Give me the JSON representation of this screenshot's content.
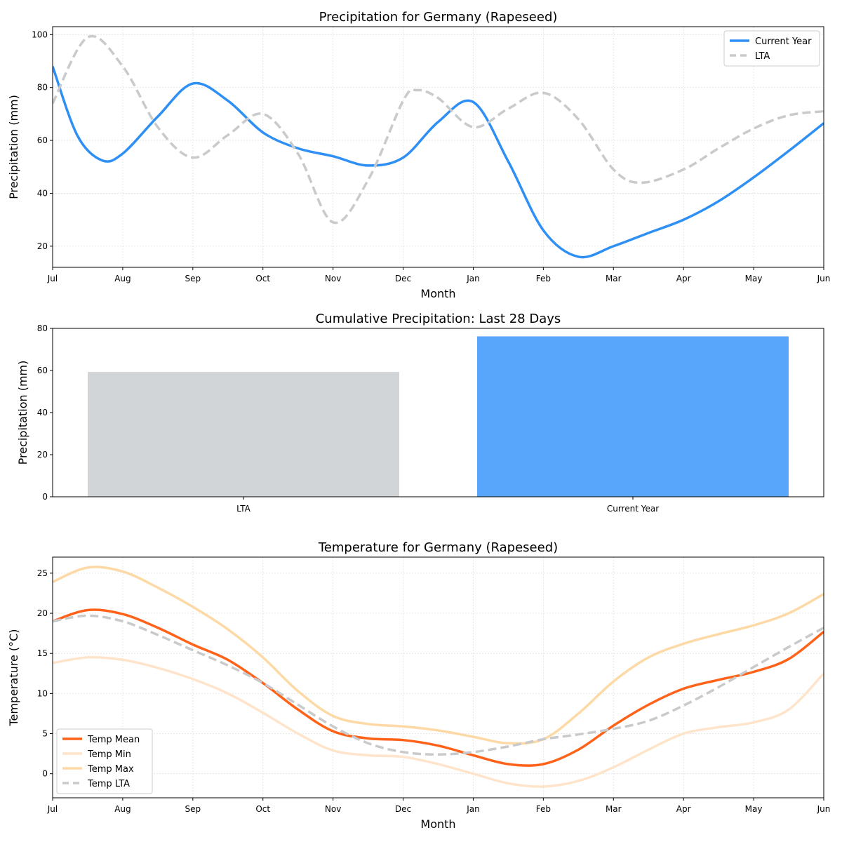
{
  "chart_data": [
    {
      "type": "line",
      "title": "Precipitation for Germany (Rapeseed)",
      "xlabel": "Month",
      "ylabel": "Precipitation (mm)",
      "x_tick_labels": [
        "Jul",
        "Aug",
        "Sep",
        "Oct",
        "Nov",
        "Dec",
        "Jan",
        "Feb",
        "Mar",
        "Apr",
        "May",
        "Jun"
      ],
      "xlim": [
        0,
        11
      ],
      "ylim": [
        12,
        103
      ],
      "y_ticks": [
        20,
        40,
        60,
        80,
        100
      ],
      "grid": true,
      "legend_position": "top-right",
      "series": [
        {
          "name": "Current Year",
          "color": "#2e8ff5",
          "style": "solid",
          "x": [
            0,
            0.35,
            0.7,
            1,
            1.5,
            2,
            2.5,
            3,
            3.5,
            4,
            4.5,
            5,
            5.5,
            6,
            6.5,
            7,
            7.5,
            8,
            8.5,
            9,
            9.5,
            10,
            10.5,
            11
          ],
          "values": [
            88,
            62,
            52.5,
            55,
            69,
            81.5,
            75,
            63,
            57,
            54,
            50.5,
            53.5,
            67,
            74.5,
            52,
            26,
            16,
            20,
            25,
            30,
            37,
            46,
            56,
            66.5
          ]
        },
        {
          "name": "LTA",
          "color": "#c8cacc",
          "style": "dashed",
          "x": [
            0,
            0.5,
            1,
            1.5,
            2,
            2.5,
            3,
            3.5,
            4,
            4.5,
            5,
            5.2,
            5.5,
            6,
            6.5,
            7,
            7.5,
            8,
            8.4,
            9,
            9.5,
            10,
            10.5,
            11
          ],
          "values": [
            74,
            99,
            88,
            65,
            53.5,
            62,
            70,
            55,
            29,
            45,
            75,
            79,
            76,
            65,
            72,
            78,
            68,
            49,
            44,
            49,
            57,
            64.5,
            69.5,
            71
          ]
        }
      ]
    },
    {
      "type": "bar",
      "title": "Cumulative Precipitation: Last 28 Days",
      "xlabel": "",
      "ylabel": "Precipitation (mm)",
      "categories": [
        "LTA",
        "Current Year"
      ],
      "values": [
        59.3,
        76.2
      ],
      "colors": [
        "#d1d5d8",
        "#58a6fb"
      ],
      "ylim": [
        0,
        80
      ],
      "y_ticks": [
        0,
        20,
        40,
        60,
        80
      ]
    },
    {
      "type": "line",
      "title": "Temperature for Germany (Rapeseed)",
      "xlabel": "Month",
      "ylabel": "Temperature (°C)",
      "x_tick_labels": [
        "Jul",
        "Aug",
        "Sep",
        "Oct",
        "Nov",
        "Dec",
        "Jan",
        "Feb",
        "Mar",
        "Apr",
        "May",
        "Jun"
      ],
      "xlim": [
        0,
        11
      ],
      "ylim": [
        -3,
        27
      ],
      "y_ticks": [
        0,
        5,
        10,
        15,
        20,
        25
      ],
      "grid": true,
      "legend_position": "bottom-left",
      "series": [
        {
          "name": "Temp Mean",
          "color": "#ff6218",
          "style": "solid",
          "x": [
            0,
            0.5,
            1,
            1.5,
            2,
            2.5,
            3,
            3.5,
            4,
            4.5,
            5,
            5.5,
            6,
            6.5,
            7,
            7.5,
            8,
            8.5,
            9,
            9.5,
            10,
            10.5,
            11
          ],
          "values": [
            19,
            20.4,
            19.9,
            18.2,
            16.1,
            14.2,
            11.3,
            8,
            5.3,
            4.4,
            4.2,
            3.5,
            2.3,
            1.2,
            1.2,
            3,
            6,
            8.6,
            10.6,
            11.7,
            12.7,
            14.3,
            17.7
          ]
        },
        {
          "name": "Temp Min",
          "color": "#ffe4cc",
          "style": "solid",
          "x": [
            0,
            0.5,
            1,
            1.5,
            2,
            2.5,
            3,
            3.5,
            4,
            4.5,
            5,
            5.5,
            6,
            6.5,
            7,
            7.5,
            8,
            8.5,
            9,
            9.5,
            10,
            10.5,
            11
          ],
          "values": [
            13.8,
            14.5,
            14.2,
            13.2,
            11.8,
            10,
            7.6,
            5,
            2.9,
            2.3,
            2.1,
            1.2,
            0,
            -1.2,
            -1.6,
            -0.9,
            0.8,
            3,
            5,
            5.8,
            6.4,
            8,
            12.5
          ]
        },
        {
          "name": "Temp Max",
          "color": "#fdd9a6",
          "style": "solid",
          "x": [
            0,
            0.5,
            1,
            1.5,
            2,
            2.5,
            3,
            3.5,
            4,
            4.5,
            5,
            5.5,
            6,
            6.5,
            7,
            7.5,
            8,
            8.5,
            9,
            9.5,
            10,
            10.5,
            11
          ],
          "values": [
            23.9,
            25.7,
            25.2,
            23.2,
            20.8,
            18,
            14.5,
            10.3,
            7.2,
            6.2,
            5.9,
            5.4,
            4.6,
            3.8,
            4.3,
            7.5,
            11.5,
            14.5,
            16.2,
            17.4,
            18.5,
            20,
            22.4
          ]
        },
        {
          "name": "Temp LTA",
          "color": "#c8cacc",
          "style": "dashed",
          "x": [
            0,
            0.5,
            1,
            1.5,
            2,
            2.5,
            3,
            3.5,
            4,
            4.5,
            5,
            5.5,
            6,
            6.5,
            7,
            7.5,
            8,
            8.5,
            9,
            9.5,
            10,
            10.5,
            11
          ],
          "values": [
            19,
            19.7,
            19,
            17.3,
            15.4,
            13.5,
            11.3,
            8.6,
            5.9,
            3.8,
            2.7,
            2.4,
            2.7,
            3.4,
            4.3,
            4.9,
            5.6,
            6.6,
            8.5,
            10.8,
            13.3,
            15.8,
            18.2
          ]
        }
      ]
    }
  ]
}
